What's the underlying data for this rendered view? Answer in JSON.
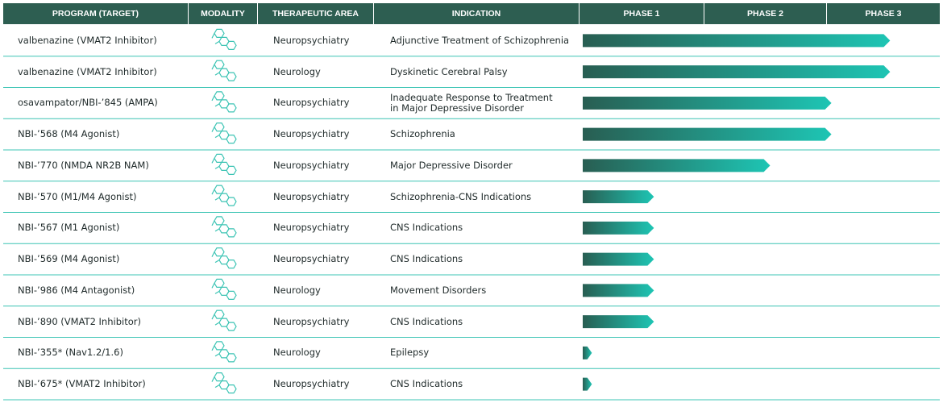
{
  "table": {
    "headers": [
      "PROGRAM (TARGET)",
      "MODALITY",
      "THERAPEUTIC AREA",
      "INDICATION",
      "PHASE 1",
      "PHASE 2",
      "PHASE 3"
    ],
    "rows": [
      {
        "program": "valbenazine (VMAT2 Inhibitor)",
        "area": "Neuropsychiatry",
        "indication": [
          "Adjunctive Treatment of Schizophrenia"
        ],
        "progress": 2.56
      },
      {
        "program": "valbenazine (VMAT2 Inhibitor)",
        "area": "Neurology",
        "indication": [
          "Dyskinetic Cerebral Palsy"
        ],
        "progress": 2.56
      },
      {
        "program": "osavampator/NBI-’845 (AMPA)",
        "area": "Neuropsychiatry",
        "indication": [
          "Inadequate Response to Treatment",
          "in Major Depressive Disorder"
        ],
        "progress": 2.04
      },
      {
        "program": "NBI-’568 (M4 Agonist)",
        "area": "Neuropsychiatry",
        "indication": [
          "Schizophrenia"
        ],
        "progress": 2.04
      },
      {
        "program": "NBI-’770 (NMDA NR2B NAM)",
        "area": "Neuropsychiatry",
        "indication": [
          "Major Depressive Disorder"
        ],
        "progress": 1.54
      },
      {
        "program": "NBI-’570 (M1/M4 Agonist)",
        "area": "Neuropsychiatry",
        "indication": [
          "Schizophrenia-CNS Indications"
        ],
        "progress": 0.6
      },
      {
        "program": "NBI-’567 (M1 Agonist)",
        "area": "Neuropsychiatry",
        "indication": [
          "CNS Indications"
        ],
        "progress": 0.6
      },
      {
        "program": "NBI-’569 (M4 Agonist)",
        "area": "Neuropsychiatry",
        "indication": [
          "CNS Indications"
        ],
        "progress": 0.6
      },
      {
        "program": "NBI-’986 (M4 Antagonist)",
        "area": "Neurology",
        "indication": [
          "Movement Disorders"
        ],
        "progress": 0.6
      },
      {
        "program": "NBI-’890 (VMAT2 Inhibitor)",
        "area": "Neuropsychiatry",
        "indication": [
          "CNS Indications"
        ],
        "progress": 0.6
      },
      {
        "program": "NBI-’355* (Nav1.2/1.6)",
        "area": "Neurology",
        "indication": [
          "Epilepsy"
        ],
        "progress": 0.1
      },
      {
        "program": "NBI-’675* (VMAT2 Inhibitor)",
        "area": "Neuropsychiatry",
        "indication": [
          "CNS Indications"
        ],
        "progress": 0.1
      }
    ]
  }
}
